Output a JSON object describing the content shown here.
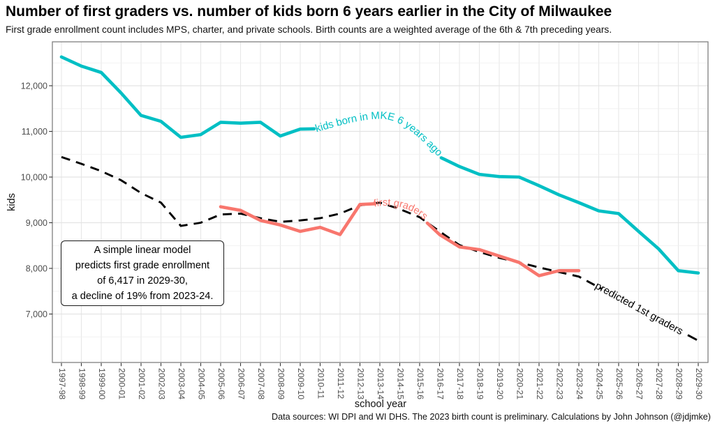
{
  "header": {
    "title": "Number of first graders vs. number of kids born 6 years earlier in the City of Milwaukee",
    "subtitle": "First grade enrollment count includes MPS, charter, and private schools. Birth counts are a weighted average of the 6th & 7th preceding years."
  },
  "caption": "Data sources: WI DPI and WI DHS. The 2023 birth count is preliminary. Calculations by John Johnson (@jdjmke)",
  "chart_data": {
    "type": "line",
    "title": "Number of first graders vs. number of kids born 6 years earlier in the City of Milwaukee",
    "xlabel": "school year",
    "ylabel": "kids",
    "ylim": [
      5950,
      12950
    ],
    "grid": true,
    "legend": "labels-on-lines",
    "y_ticks": [
      7000,
      8000,
      9000,
      10000,
      11000,
      12000
    ],
    "y_tick_labels": [
      "7,000",
      "8,000",
      "9,000",
      "10,000",
      "11,000",
      "12,000"
    ],
    "y_minor_ticks": [
      6500,
      7500,
      8500,
      9500,
      10500,
      11500,
      12500
    ],
    "categories": [
      "1997-98",
      "1998-99",
      "1999-00",
      "2000-01",
      "2001-02",
      "2002-03",
      "2003-04",
      "2004-05",
      "2005-06",
      "2006-07",
      "2007-08",
      "2008-09",
      "2009-10",
      "2010-11",
      "2011-12",
      "2012-13",
      "2013-14",
      "2014-15",
      "2015-16",
      "2016-17",
      "2017-18",
      "2018-19",
      "2019-20",
      "2020-21",
      "2021-22",
      "2022-23",
      "2023-24",
      "2024-25",
      "2025-26",
      "2026-27",
      "2027-28",
      "2028-29",
      "2029-30"
    ],
    "series": [
      {
        "name": "kids born in MKE 6 years ago",
        "color": "#00BFC4",
        "style": "solid",
        "values": [
          12630,
          12430,
          12290,
          11840,
          11350,
          11220,
          10870,
          10930,
          11200,
          11180,
          11200,
          10900,
          11050,
          11060,
          11150,
          11250,
          11330,
          11250,
          10900,
          10440,
          10230,
          10060,
          10010,
          10000,
          9810,
          9610,
          9440,
          9260,
          9200,
          8810,
          8430,
          7950,
          7900
        ]
      },
      {
        "name": "first graders",
        "color": "#F8766D",
        "style": "solid",
        "values": [
          null,
          null,
          null,
          null,
          null,
          null,
          null,
          null,
          9350,
          9270,
          9050,
          8950,
          8810,
          8900,
          8740,
          9400,
          9420,
          9300,
          9150,
          8740,
          8470,
          8410,
          8270,
          8130,
          7840,
          7950,
          7950,
          null,
          null,
          null,
          null,
          null,
          null
        ]
      },
      {
        "name": "predicted 1st graders",
        "color": "#000000",
        "style": "dashed",
        "values": [
          10440,
          10290,
          10130,
          9930,
          9650,
          9440,
          8930,
          9000,
          9180,
          9200,
          9100,
          9020,
          9050,
          9100,
          9200,
          9380,
          9440,
          9300,
          9120,
          8810,
          8510,
          8360,
          8230,
          8130,
          8020,
          7920,
          7820,
          7586,
          7352,
          7118,
          6884,
          6650,
          6417
        ]
      }
    ],
    "annotation": {
      "lines": [
        "A simple linear model",
        "predicts first grade enrollment",
        "of 6,417 in 2029-30,",
        "a decline of 19% from 2023-24."
      ]
    }
  }
}
